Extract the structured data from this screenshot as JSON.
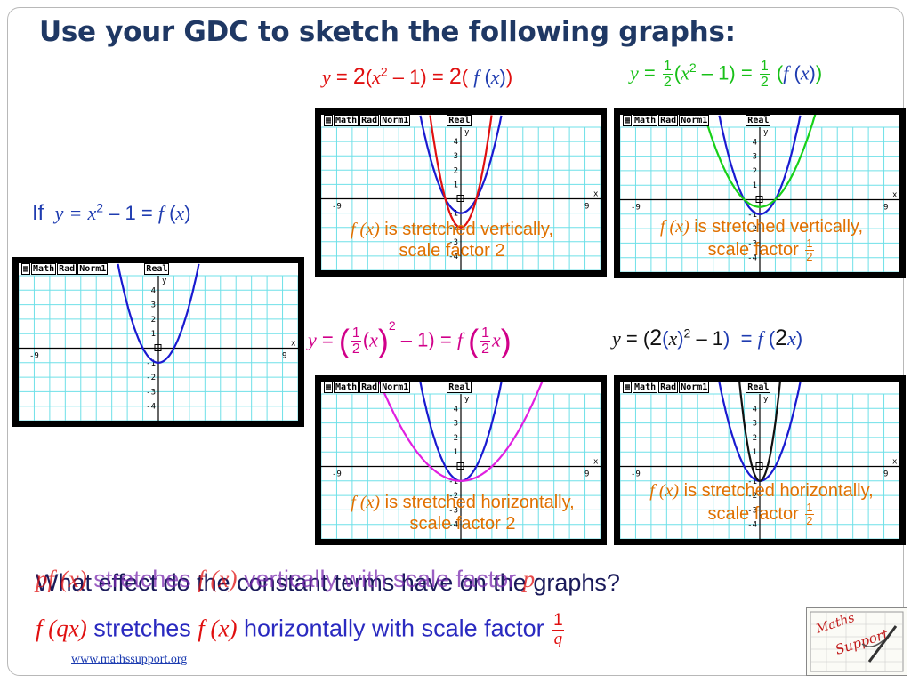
{
  "title": "Use your GDC to sketch the following graphs:",
  "base": {
    "if_word": "If",
    "y": "y",
    "eqs": "=",
    "x": "x",
    "sq": "2",
    "minus_one": "– 1",
    "eq2": "=",
    "f": "f",
    "lp": "(",
    "rp": ")"
  },
  "eq1": {
    "y": "y",
    "eq": "=",
    "k": "2",
    "lp": "(",
    "x": "x",
    "sq": "2",
    "minus_one": "– 1",
    "rp": ")",
    "eq2": "=",
    "k2": "2",
    "lp2": "(",
    "f": "f",
    "lp3": "(",
    "x2": "x",
    "rp3": ")",
    "rp2": ")"
  },
  "eq2": {
    "y": "y",
    "eq": "=",
    "num": "1",
    "den": "2",
    "lp": "(",
    "x": "x",
    "sq": "2",
    "minus_one": "– 1",
    "rp": ")",
    "eq2": "=",
    "num2": "1",
    "den2": "2",
    "lp2": "(",
    "f": "f",
    "lp3": "(",
    "x2": "x",
    "rp3": ")",
    "rp2": ")"
  },
  "eq3": {
    "y": "y",
    "eq": "=",
    "num": "1",
    "den": "2",
    "x": "x",
    "sq": "2",
    "minus_one": "– 1",
    "rp": ")",
    "eq2": "=",
    "f": "f",
    "num2": "1",
    "den2": "2",
    "x2": "x"
  },
  "eq4": {
    "y": "y",
    "eq": "=",
    "lp": "(",
    "k": "2",
    "lp2": "(",
    "x": "x",
    "rp2": ")",
    "sq": "2",
    "minus_one": "– 1",
    "rp": ")",
    "eq2": "=",
    "f": "f",
    "lp3": "(",
    "k2": "2",
    "x2": "x",
    "rp3": ")"
  },
  "captions": {
    "c1": {
      "fx": "f (x)",
      "line1": " is stretched vertically,",
      "line2": "scale factor 2"
    },
    "c2": {
      "fx": "f (x)",
      "line1": " is stretched vertically,",
      "line2": "scale factor",
      "num": "1",
      "den": "2"
    },
    "c3": {
      "fx": "f (x)",
      "line1": " is stretched horizontally,",
      "line2": "scale factor 2"
    },
    "c4": {
      "fx": "f (x)",
      "line1": " is stretched horizontally,",
      "line2": "scale factor",
      "num": "1",
      "den": "2"
    }
  },
  "calc": {
    "tags": [
      "Math",
      "Rad",
      "Norm1",
      "Real"
    ],
    "xmin_label": "-9",
    "xmax_label": "9",
    "x_label": "x",
    "y_label": "y",
    "y_ticks": [
      "4",
      "3",
      "2",
      "1",
      "-1",
      "-2",
      "-3",
      "-4"
    ],
    "window": {
      "xmin": -9,
      "xmax": 9,
      "ymin": -5,
      "ymax": 5
    }
  },
  "graphs": {
    "base": [
      {
        "a": 1,
        "q": 1,
        "color": "#1a1ad0"
      }
    ],
    "g1": [
      {
        "a": 1,
        "q": 1,
        "color": "#1a1ad0"
      },
      {
        "a": 2,
        "q": 1,
        "color": "#e01010"
      }
    ],
    "g2": [
      {
        "a": 1,
        "q": 1,
        "color": "#1a1ad0"
      },
      {
        "a": 0.5,
        "q": 1,
        "color": "#18d018"
      }
    ],
    "g3": [
      {
        "a": 1,
        "q": 1,
        "color": "#1a1ad0"
      },
      {
        "a": 1,
        "q": 0.5,
        "color": "#e020e0"
      }
    ],
    "g4": [
      {
        "a": 1,
        "q": 1,
        "color": "#1a1ad0"
      },
      {
        "a": 1,
        "q": 2,
        "color": "#111111"
      }
    ]
  },
  "bottom": {
    "line_overlap_a": "What effect do the constant terms have on the graphs?",
    "line_overlap_b_pre": "p",
    "line_overlap_b_fx": "f (x)",
    "line_overlap_b_mid": " stretches ",
    "line_overlap_b_fx2": "f (x)",
    "line_overlap_b_post": " vertically with scale factor ",
    "line_overlap_b_p": "p",
    "line2_fq": "f (qx)",
    "line2_mid": " stretches ",
    "line2_fx": "f (x)",
    "line2_post": " horizontally with scale factor ",
    "num": "1",
    "den": "q"
  },
  "footer": "www.mathssupport.org",
  "logo_text": "Maths Support"
}
